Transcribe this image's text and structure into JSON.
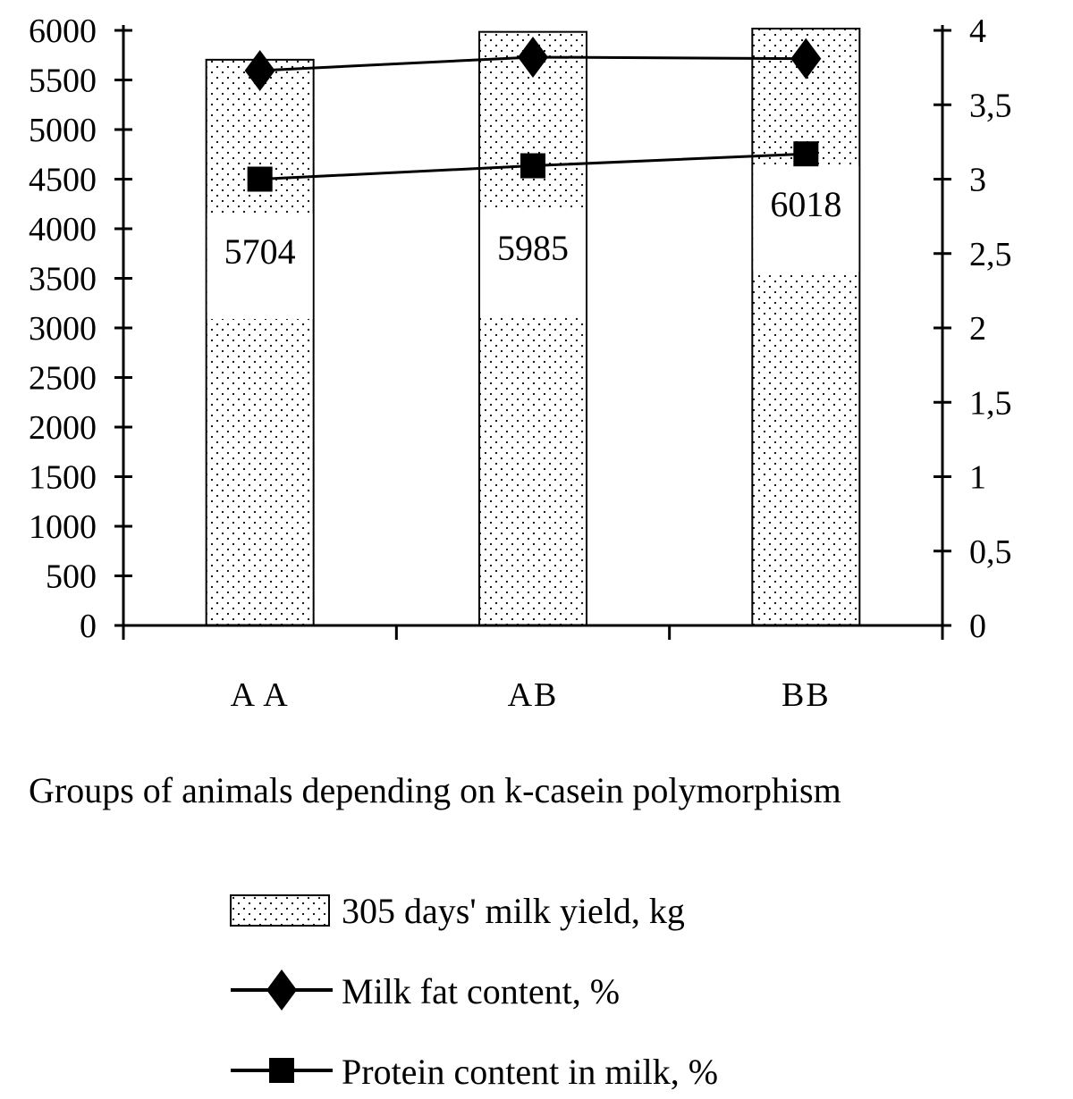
{
  "chart_data": {
    "type": "bar",
    "categories": [
      "A A",
      "AB",
      "BB"
    ],
    "xlabel": "Groups of animals depending on k-casein polymorphism",
    "ylabel": "",
    "ylim": [
      0,
      6000
    ],
    "y_ticks": [
      0,
      500,
      1000,
      1500,
      2000,
      2500,
      3000,
      3500,
      4000,
      4500,
      5000,
      5500,
      6000
    ],
    "y2lim": [
      0,
      4
    ],
    "y2_ticks": [
      "0",
      "0,5",
      "1",
      "1,5",
      "2",
      "2,5",
      "3",
      "3,5",
      "4"
    ],
    "series": [
      {
        "name": "305 days' milk yield, kg",
        "kind": "bar",
        "axis": "left",
        "values": [
          5704,
          5985,
          6018
        ],
        "data_labels": [
          "5704",
          "5985",
          "6018"
        ],
        "pattern": "dotted"
      },
      {
        "name": "Milk fat content, %",
        "kind": "line",
        "axis": "right",
        "marker": "diamond",
        "values": [
          3.73,
          3.82,
          3.81
        ]
      },
      {
        "name": "Protein content in milk, %",
        "kind": "line",
        "axis": "right",
        "marker": "square",
        "values": [
          3.0,
          3.09,
          3.17
        ]
      }
    ],
    "grid": false,
    "legend_position": "bottom"
  }
}
